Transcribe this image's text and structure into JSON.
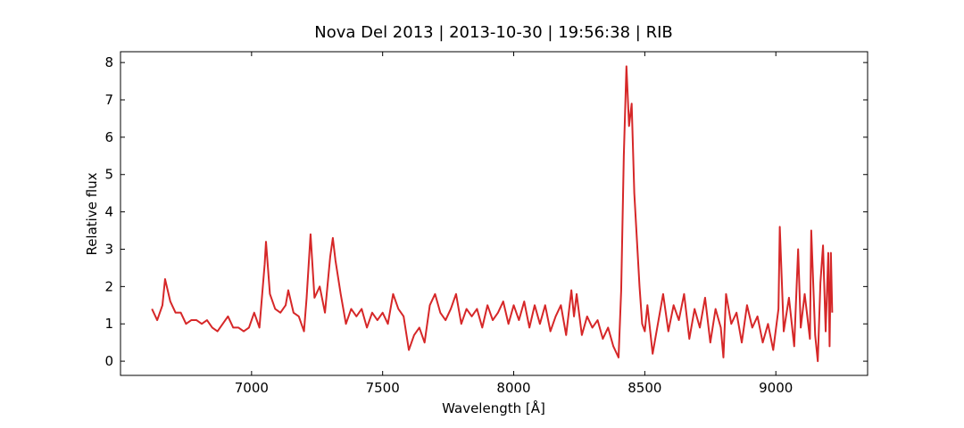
{
  "chart_data": {
    "type": "line",
    "title": "Nova Del 2013 | 2013-10-30 | 19:56:38 | RIB",
    "x_label": "Wavelength [Å]",
    "y_label": "Relative flux",
    "xlim": [
      6500,
      9350
    ],
    "ylim": [
      -0.38,
      8.29
    ],
    "xticks": [
      7000,
      7500,
      8000,
      8500,
      9000
    ],
    "yticks": [
      0,
      1,
      2,
      3,
      4,
      5,
      6,
      7,
      8
    ],
    "x": [
      6620,
      6640,
      6660,
      6670,
      6690,
      6710,
      6730,
      6750,
      6770,
      6790,
      6810,
      6830,
      6850,
      6870,
      6890,
      6910,
      6930,
      6950,
      6970,
      6990,
      7010,
      7030,
      7050,
      7055,
      7070,
      7090,
      7110,
      7130,
      7140,
      7160,
      7180,
      7200,
      7210,
      7225,
      7240,
      7260,
      7280,
      7300,
      7310,
      7320,
      7340,
      7360,
      7380,
      7400,
      7420,
      7440,
      7460,
      7480,
      7500,
      7520,
      7540,
      7560,
      7580,
      7600,
      7620,
      7640,
      7660,
      7680,
      7700,
      7720,
      7740,
      7760,
      7780,
      7800,
      7820,
      7840,
      7860,
      7880,
      7900,
      7920,
      7940,
      7960,
      7980,
      8000,
      8020,
      8040,
      8060,
      8080,
      8100,
      8120,
      8140,
      8160,
      8180,
      8200,
      8220,
      8230,
      8240,
      8260,
      8280,
      8300,
      8320,
      8340,
      8360,
      8380,
      8400,
      8410,
      8420,
      8430,
      8440,
      8450,
      8460,
      8480,
      8490,
      8500,
      8510,
      8530,
      8550,
      8570,
      8590,
      8610,
      8630,
      8650,
      8670,
      8690,
      8710,
      8730,
      8750,
      8770,
      8790,
      8800,
      8810,
      8830,
      8850,
      8870,
      8890,
      8910,
      8930,
      8950,
      8970,
      8990,
      9010,
      9015,
      9030,
      9050,
      9070,
      9085,
      9095,
      9110,
      9130,
      9135,
      9150,
      9160,
      9170,
      9180,
      9190,
      9200,
      9205,
      9210,
      9215
    ],
    "series": [
      {
        "name": "Nova Del 2013",
        "color": "#d62728",
        "values": [
          1.4,
          1.1,
          1.5,
          2.2,
          1.6,
          1.3,
          1.3,
          1.0,
          1.1,
          1.1,
          1.0,
          1.1,
          0.9,
          0.8,
          1.0,
          1.2,
          0.9,
          0.9,
          0.8,
          0.9,
          1.3,
          0.9,
          2.6,
          3.2,
          1.8,
          1.4,
          1.3,
          1.5,
          1.9,
          1.3,
          1.2,
          0.8,
          1.7,
          3.4,
          1.7,
          2.0,
          1.3,
          2.8,
          3.3,
          2.7,
          1.8,
          1.0,
          1.4,
          1.2,
          1.4,
          0.9,
          1.3,
          1.1,
          1.3,
          1.0,
          1.8,
          1.4,
          1.2,
          0.3,
          0.7,
          0.9,
          0.5,
          1.5,
          1.8,
          1.3,
          1.1,
          1.4,
          1.8,
          1.0,
          1.4,
          1.2,
          1.4,
          0.9,
          1.5,
          1.1,
          1.3,
          1.6,
          1.0,
          1.5,
          1.1,
          1.6,
          0.9,
          1.5,
          1.0,
          1.5,
          0.8,
          1.2,
          1.5,
          0.7,
          1.9,
          1.2,
          1.8,
          0.7,
          1.2,
          0.9,
          1.1,
          0.6,
          0.9,
          0.4,
          0.1,
          1.9,
          5.5,
          7.9,
          6.3,
          6.9,
          4.5,
          2.0,
          1.0,
          0.8,
          1.5,
          0.2,
          1.0,
          1.8,
          0.8,
          1.5,
          1.1,
          1.8,
          0.6,
          1.4,
          0.9,
          1.7,
          0.5,
          1.4,
          0.9,
          0.1,
          1.8,
          1.0,
          1.3,
          0.5,
          1.5,
          0.9,
          1.2,
          0.5,
          1.0,
          0.3,
          1.4,
          3.6,
          0.8,
          1.7,
          0.4,
          3.0,
          0.9,
          1.8,
          0.6,
          3.5,
          0.7,
          0.0,
          2.1,
          3.1,
          0.8,
          2.9,
          0.4,
          2.9,
          1.3
        ]
      }
    ]
  }
}
